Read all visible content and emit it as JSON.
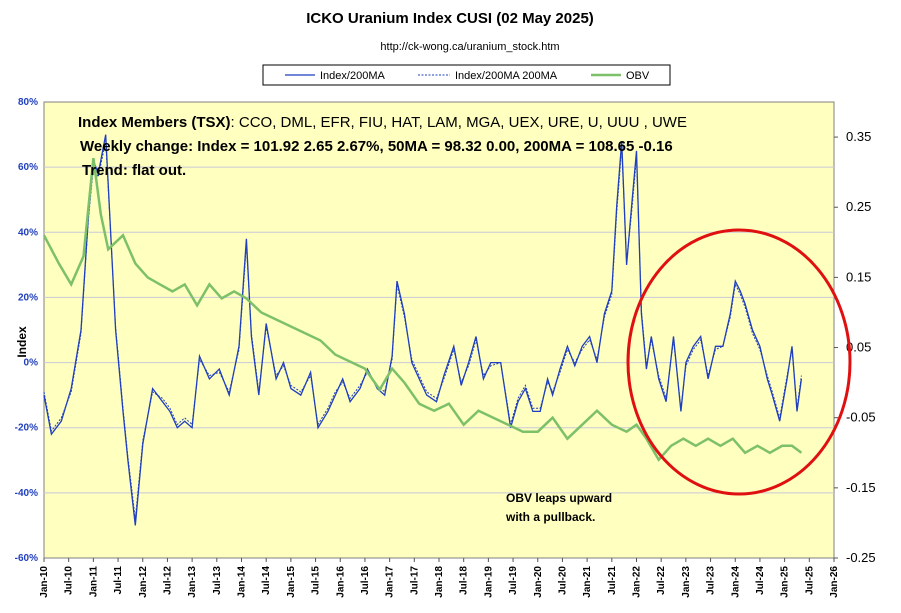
{
  "header": {
    "title": "ICKO Uranium Index CUSI  (02 May 2025)",
    "url": "http://ck-wong.ca/uranium_stock.htm"
  },
  "annotations": {
    "members_label": "Index Members (TSX)",
    "members_list": ": CCO, DML, EFR, FIU, HAT, LAM, MGA, UEX, URE, U, UUU , UWE",
    "weekly": "Weekly change:  Index = 101.92  2.65  2.67%,  50MA =  98.32 0.00,  200MA = 108.65  -0.16",
    "trend": "Trend:  flat out.",
    "obv_note_line1": "OBV leaps upward",
    "obv_note_line2": "with a pullback."
  },
  "colors": {
    "plot_bg": "#ffffc0",
    "index_line": "#1f3fbf",
    "obv_line": "#7cc06a",
    "circle": "#e01010",
    "grid": "#c8c8d8"
  },
  "chart_data": {
    "type": "line",
    "ylabel": "Index",
    "legend": [
      "Index/200MA",
      "Index/200MA 200MA",
      "OBV"
    ],
    "legend_position": "top-center",
    "grid": true,
    "y_left_range": [
      -60,
      80
    ],
    "y_left_ticks": [
      "80%",
      "60%",
      "40%",
      "20%",
      "0%",
      "-20%",
      "-40%",
      "-60%"
    ],
    "y_right_range": [
      -0.25,
      0.4
    ],
    "y_right_ticks": [
      "0.35",
      "0.25",
      "0.15",
      "0.05",
      "-0.05",
      "-0.15",
      "-0.25"
    ],
    "x_ticks": [
      "Jan-10",
      "Jul-10",
      "Jan-11",
      "Jul-11",
      "Jan-12",
      "Jul-12",
      "Jan-13",
      "Jul-13",
      "Jan-14",
      "Jul-14",
      "Jan-15",
      "Jul-15",
      "Jan-16",
      "Jul-16",
      "Jan-17",
      "Jul-17",
      "Jan-18",
      "Jul-18",
      "Jan-19",
      "Jul-19",
      "Jan-20",
      "Jul-20",
      "Jan-21",
      "Jul-21",
      "Jan-22",
      "Jul-22",
      "Jan-23",
      "Jul-23",
      "Jan-24",
      "Jul-24",
      "Jan-25",
      "Jul-25",
      "Jan-26"
    ],
    "x_range": [
      2010.0,
      2026.0
    ],
    "series": [
      {
        "name": "Index/200MA",
        "x": [
          2010.0,
          2010.15,
          2010.35,
          2010.55,
          2010.75,
          2010.9,
          2011.0,
          2011.1,
          2011.25,
          2011.45,
          2011.6,
          2011.7,
          2011.85,
          2012.0,
          2012.2,
          2012.4,
          2012.55,
          2012.7,
          2012.85,
          2013.0,
          2013.15,
          2013.35,
          2013.55,
          2013.75,
          2013.95,
          2014.1,
          2014.2,
          2014.35,
          2014.5,
          2014.7,
          2014.85,
          2015.0,
          2015.2,
          2015.4,
          2015.55,
          2015.75,
          2015.9,
          2016.05,
          2016.2,
          2016.4,
          2016.55,
          2016.75,
          2016.9,
          2017.05,
          2017.15,
          2017.3,
          2017.45,
          2017.6,
          2017.75,
          2017.95,
          2018.1,
          2018.3,
          2018.45,
          2018.6,
          2018.75,
          2018.9,
          2019.05,
          2019.25,
          2019.45,
          2019.6,
          2019.75,
          2019.9,
          2020.05,
          2020.2,
          2020.3,
          2020.45,
          2020.6,
          2020.75,
          2020.9,
          2021.05,
          2021.2,
          2021.35,
          2021.5,
          2021.6,
          2021.7,
          2021.8,
          2021.9,
          2022.0,
          2022.1,
          2022.2,
          2022.3,
          2022.45,
          2022.6,
          2022.75,
          2022.9,
          2023.0,
          2023.15,
          2023.3,
          2023.45,
          2023.6,
          2023.75,
          2023.9,
          2024.0,
          2024.1,
          2024.2,
          2024.35,
          2024.5,
          2024.65,
          2024.75,
          2024.9,
          2025.05,
          2025.15,
          2025.25,
          2025.34
        ],
        "values": [
          -10,
          -22,
          -18,
          -8,
          10,
          45,
          62,
          58,
          70,
          10,
          -15,
          -30,
          -50,
          -25,
          -8,
          -12,
          -15,
          -20,
          -18,
          -20,
          2,
          -5,
          -2,
          -10,
          5,
          38,
          8,
          -10,
          12,
          -5,
          0,
          -8,
          -10,
          -3,
          -20,
          -15,
          -10,
          -5,
          -12,
          -8,
          -2,
          -8,
          -10,
          2,
          25,
          15,
          0,
          -5,
          -10,
          -12,
          -4,
          5,
          -7,
          0,
          8,
          -5,
          0,
          0,
          -20,
          -12,
          -8,
          -15,
          -15,
          -5,
          -10,
          -2,
          5,
          -1,
          5,
          8,
          0,
          15,
          22,
          48,
          68,
          30,
          48,
          65,
          15,
          -2,
          8,
          -5,
          -12,
          8,
          -15,
          0,
          5,
          8,
          -5,
          5,
          5,
          15,
          25,
          22,
          18,
          10,
          5,
          -5,
          -10,
          -18,
          -5,
          5,
          -15,
          -5
        ]
      },
      {
        "name": "Index/200MA 200MA",
        "x": [
          2010.0,
          2010.15,
          2010.35,
          2010.55,
          2010.75,
          2010.9,
          2011.0,
          2011.1,
          2011.25,
          2011.45,
          2011.6,
          2011.7,
          2011.85,
          2012.0,
          2012.2,
          2012.4,
          2012.55,
          2012.7,
          2012.85,
          2013.0,
          2013.15,
          2013.35,
          2013.55,
          2013.75,
          2013.95,
          2014.1,
          2014.2,
          2014.35,
          2014.5,
          2014.7,
          2014.85,
          2015.0,
          2015.2,
          2015.4,
          2015.55,
          2015.75,
          2015.9,
          2016.05,
          2016.2,
          2016.4,
          2016.55,
          2016.75,
          2016.9,
          2017.05,
          2017.15,
          2017.3,
          2017.45,
          2017.6,
          2017.75,
          2017.95,
          2018.1,
          2018.3,
          2018.45,
          2018.6,
          2018.75,
          2018.9,
          2019.05,
          2019.25,
          2019.45,
          2019.6,
          2019.75,
          2019.9,
          2020.05,
          2020.2,
          2020.3,
          2020.45,
          2020.6,
          2020.75,
          2020.9,
          2021.05,
          2021.2,
          2021.35,
          2021.5,
          2021.6,
          2021.7,
          2021.8,
          2021.9,
          2022.0,
          2022.1,
          2022.2,
          2022.3,
          2022.45,
          2022.6,
          2022.75,
          2022.9,
          2023.0,
          2023.15,
          2023.3,
          2023.45,
          2023.6,
          2023.75,
          2023.9,
          2024.0,
          2024.1,
          2024.2,
          2024.35,
          2024.5,
          2024.65,
          2024.75,
          2024.9,
          2025.05,
          2025.15,
          2025.25,
          2025.34
        ],
        "values": [
          -9,
          -21,
          -17,
          -9,
          9,
          44,
          60,
          57,
          68,
          11,
          -14,
          -29,
          -48,
          -24,
          -9,
          -11,
          -14,
          -19,
          -17,
          -19,
          1,
          -4,
          -3,
          -9,
          4,
          36,
          9,
          -9,
          11,
          -4,
          -1,
          -7,
          -9,
          -4,
          -19,
          -14,
          -9,
          -6,
          -11,
          -7,
          -3,
          -7,
          -9,
          1,
          24,
          14,
          1,
          -4,
          -9,
          -11,
          -5,
          4,
          -6,
          -1,
          7,
          -4,
          -1,
          0,
          -19,
          -11,
          -7,
          -14,
          -14,
          -6,
          -9,
          -3,
          4,
          0,
          4,
          7,
          1,
          14,
          21,
          46,
          66,
          31,
          46,
          63,
          16,
          -1,
          7,
          -4,
          -11,
          7,
          -14,
          -1,
          4,
          7,
          -4,
          4,
          5,
          14,
          24,
          21,
          17,
          9,
          4,
          -4,
          -9,
          -17,
          -4,
          4,
          -14,
          -4
        ]
      },
      {
        "name": "OBV",
        "x": [
          2010.0,
          2010.3,
          2010.55,
          2010.8,
          2011.0,
          2011.15,
          2011.3,
          2011.6,
          2011.85,
          2012.1,
          2012.35,
          2012.6,
          2012.85,
          2013.1,
          2013.35,
          2013.6,
          2013.85,
          2014.1,
          2014.4,
          2014.7,
          2015.0,
          2015.3,
          2015.6,
          2015.9,
          2016.2,
          2016.5,
          2016.8,
          2017.05,
          2017.3,
          2017.6,
          2017.9,
          2018.2,
          2018.5,
          2018.8,
          2019.1,
          2019.4,
          2019.7,
          2020.0,
          2020.3,
          2020.6,
          2020.9,
          2021.2,
          2021.5,
          2021.8,
          2022.0,
          2022.2,
          2022.45,
          2022.7,
          2022.95,
          2023.2,
          2023.45,
          2023.7,
          2023.95,
          2024.2,
          2024.45,
          2024.7,
          2024.95,
          2025.15,
          2025.34
        ],
        "values": [
          0.21,
          0.17,
          0.14,
          0.18,
          0.32,
          0.24,
          0.19,
          0.21,
          0.17,
          0.15,
          0.14,
          0.13,
          0.14,
          0.11,
          0.14,
          0.12,
          0.13,
          0.12,
          0.1,
          0.09,
          0.08,
          0.07,
          0.06,
          0.04,
          0.03,
          0.02,
          -0.01,
          0.02,
          0.0,
          -0.03,
          -0.04,
          -0.03,
          -0.06,
          -0.04,
          -0.05,
          -0.06,
          -0.07,
          -0.07,
          -0.05,
          -0.08,
          -0.06,
          -0.04,
          -0.06,
          -0.07,
          -0.06,
          -0.08,
          -0.11,
          -0.09,
          -0.08,
          -0.09,
          -0.08,
          -0.09,
          -0.08,
          -0.1,
          -0.09,
          -0.1,
          -0.09,
          -0.09,
          -0.1
        ]
      }
    ]
  }
}
